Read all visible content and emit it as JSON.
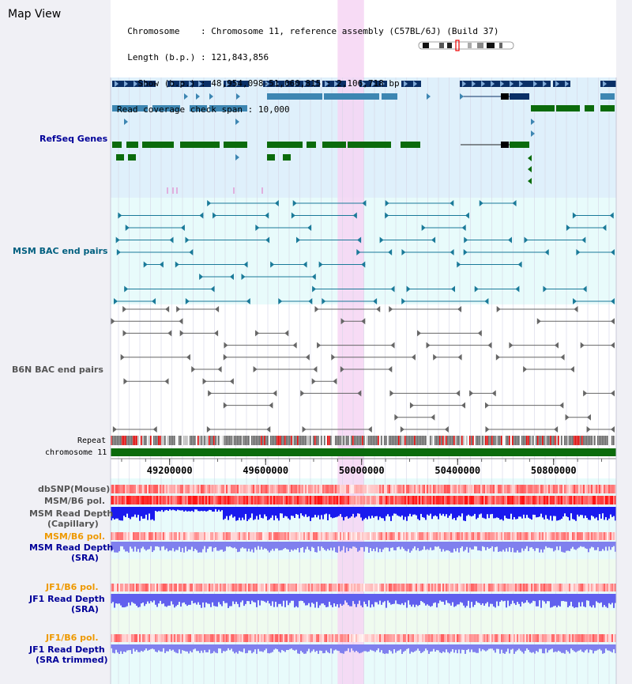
{
  "page": {
    "title": "Map View"
  },
  "header": {
    "chromosome_label": "Chromosome",
    "chromosome_value": "Chromosome 11, reference assembly (C57BL/6J) (Build 37)",
    "length_label": "Length (b.p.)",
    "length_value": "121,843,856",
    "show_label": "Show (b.p.)",
    "show_value": "48,954,098-51,060,815 : 2,106,718 bp",
    "coverage_label": "Read coverage check span",
    "coverage_value": "10,000"
  },
  "tracks": {
    "refseq": "RefSeq Genes",
    "msm_bac": "MSM BAC end pairs",
    "b6n_bac": "B6N BAC end pairs",
    "repeat": "Repeat",
    "chromosome": "chromosome 11",
    "dbsnp": "dbSNP(Mouse)",
    "msm_b6_pol": "MSM/B6 pol.",
    "msm_read_depth_cap_1": "MSM Read Depth",
    "msm_read_depth_cap_2": "(Capillary)",
    "msm_b6_pol_sra": "MSM/B6 pol.",
    "msm_read_depth_sra_1": "MSM Read Depth",
    "msm_read_depth_sra_2": "(SRA)",
    "jf1_b6_pol_1": "JF1/B6 pol.",
    "jf1_read_depth_1": "JF1 Read Depth",
    "jf1_read_depth_1b": "(SRA)",
    "jf1_b6_pol_2": "JF1/B6 pol.",
    "jf1_read_depth_2": "JF1 Read Depth",
    "jf1_read_depth_2b": "(SRA trimmed)"
  },
  "axis": {
    "range_bp": [
      48954098,
      51060815
    ],
    "ticks": [
      "49200000",
      "49600000",
      "50000000",
      "50400000",
      "50800000"
    ],
    "tick_values": [
      49200000,
      49600000,
      50000000,
      50400000,
      50800000
    ]
  },
  "highlight_bp": [
    49900000,
    50010000
  ],
  "colors": {
    "refseq_bg": "#dff0fb",
    "msm_bg": "#e8fbfb",
    "b6n_bg": "#ffffff",
    "highlight": "#f6d5f3",
    "refseq_dark": "#0a2f66",
    "refseq_mid": "#3d86b2",
    "refseq_green": "#0b6b0b",
    "msm_color": "#1a7a99",
    "b6n_color": "#666666",
    "depth_blue": "#1a1aee",
    "depth_light": "#8080ee",
    "chromosome": "#0b6b0b",
    "orange_label": "#ee9900",
    "blue_label": "#000099",
    "teal_label": "#005f7f"
  }
}
